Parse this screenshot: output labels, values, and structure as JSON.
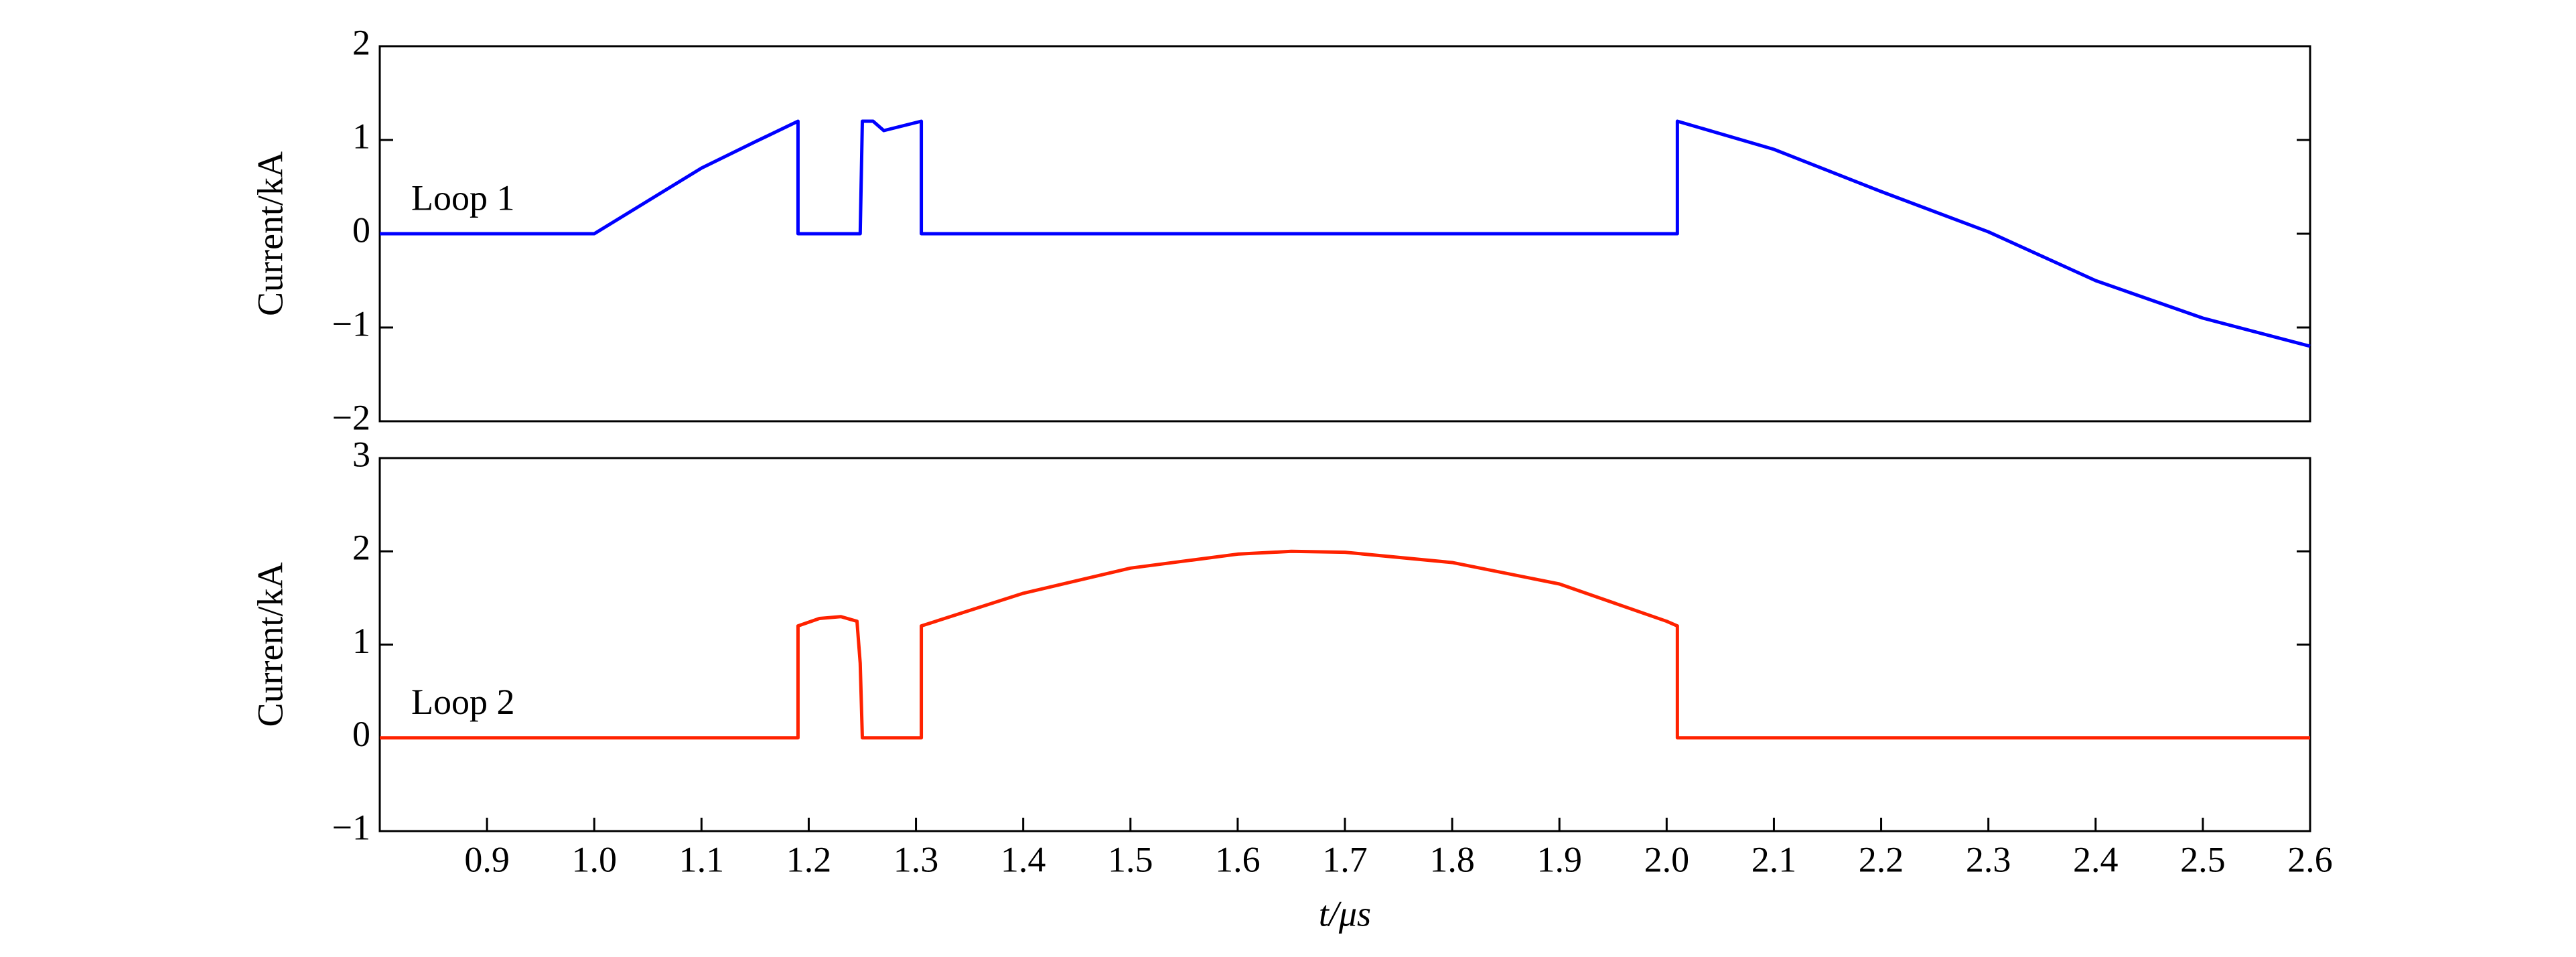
{
  "chart_data": [
    {
      "type": "line",
      "ylabel": "Current/kA",
      "x": [
        0.8,
        1.0,
        1.05,
        1.1,
        1.15,
        1.19,
        1.19,
        1.248,
        1.25,
        1.26,
        1.27,
        1.305,
        1.305,
        2.01,
        2.01,
        2.1,
        2.2,
        2.3,
        2.4,
        2.5,
        2.6
      ],
      "series": [
        {
          "name": "Loop 1",
          "color": "#0000ff",
          "values": [
            0,
            0,
            0.35,
            0.7,
            0.98,
            1.2,
            0,
            0,
            1.2,
            1.2,
            1.1,
            1.2,
            0,
            0,
            1.2,
            0.9,
            0.45,
            0.02,
            -0.5,
            -0.9,
            -1.2
          ]
        }
      ],
      "xlim": [
        0.8,
        2.6
      ],
      "ylim": [
        -2,
        2
      ],
      "yticks": [
        {
          "value": -2,
          "label": "−2"
        },
        {
          "value": -1,
          "label": "−1"
        },
        0,
        1,
        2
      ]
    },
    {
      "type": "line",
      "ylabel": "Current/kA",
      "xlabel": "t/μs",
      "x": [
        0.8,
        1.19,
        1.19,
        1.21,
        1.23,
        1.245,
        1.248,
        1.25,
        1.305,
        1.305,
        1.4,
        1.5,
        1.6,
        1.65,
        1.7,
        1.8,
        1.9,
        2.0,
        2.01,
        2.01,
        2.6
      ],
      "series": [
        {
          "name": "Loop 2",
          "color": "#ff2200",
          "values": [
            0,
            0,
            1.2,
            1.28,
            1.3,
            1.25,
            0.8,
            0,
            0,
            1.2,
            1.55,
            1.82,
            1.97,
            2.0,
            1.99,
            1.88,
            1.65,
            1.25,
            1.2,
            0,
            0
          ]
        }
      ],
      "xlim": [
        0.8,
        2.6
      ],
      "ylim": [
        -1,
        3
      ],
      "yticks": [
        {
          "value": -1,
          "label": "−1"
        },
        0,
        1,
        2,
        3
      ],
      "xticks": [
        0.9,
        {
          "value": 1,
          "label": "1.0"
        },
        1.1,
        1.2,
        1.3,
        1.4,
        1.5,
        1.6,
        1.7,
        1.8,
        1.9,
        {
          "value": 2,
          "label": "2.0"
        },
        2.1,
        2.2,
        2.3,
        2.4,
        2.5,
        2.6
      ]
    }
  ]
}
